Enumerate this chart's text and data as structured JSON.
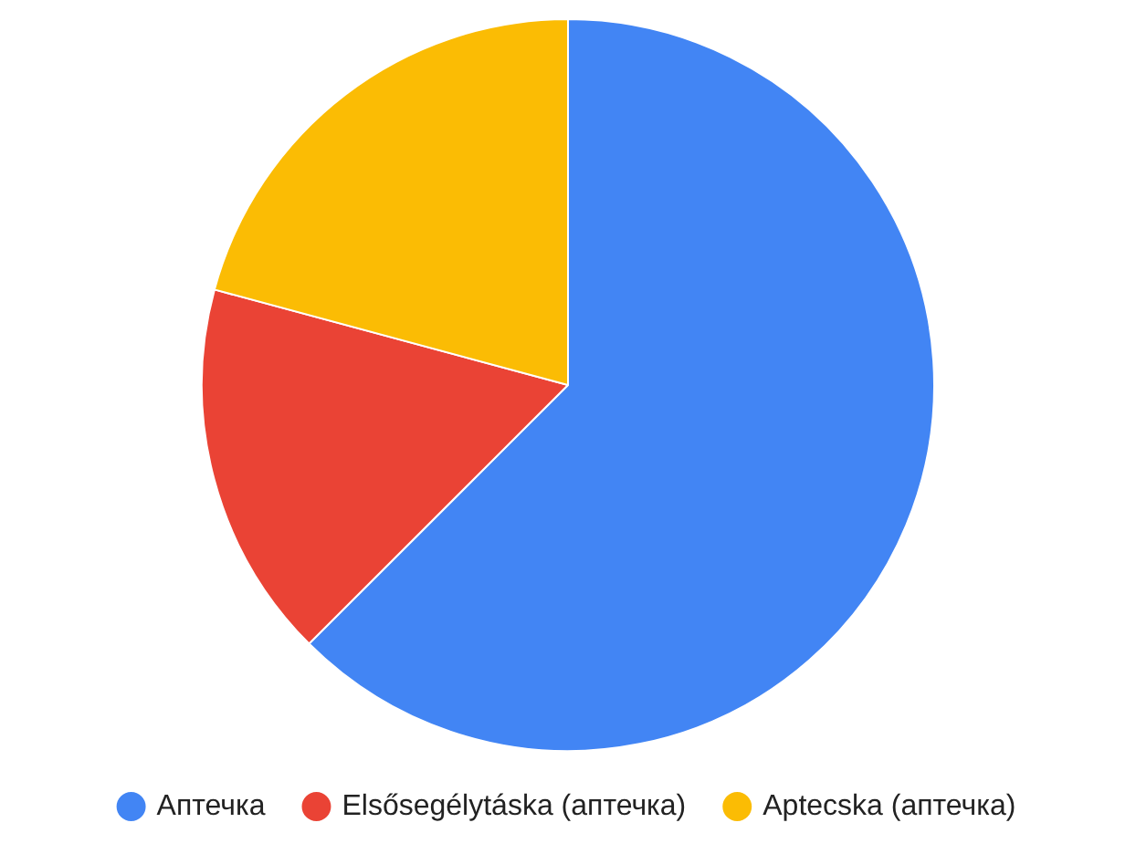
{
  "chart_data": {
    "type": "pie",
    "categories": [
      "Аптечка",
      "Elsősegélytáska (аптечка)",
      "Aptecska (аптечка)"
    ],
    "values": [
      62.5,
      16.7,
      20.8
    ],
    "colors": [
      "#4285f4",
      "#ea4335",
      "#fbbc04"
    ],
    "legend": "bottom"
  }
}
